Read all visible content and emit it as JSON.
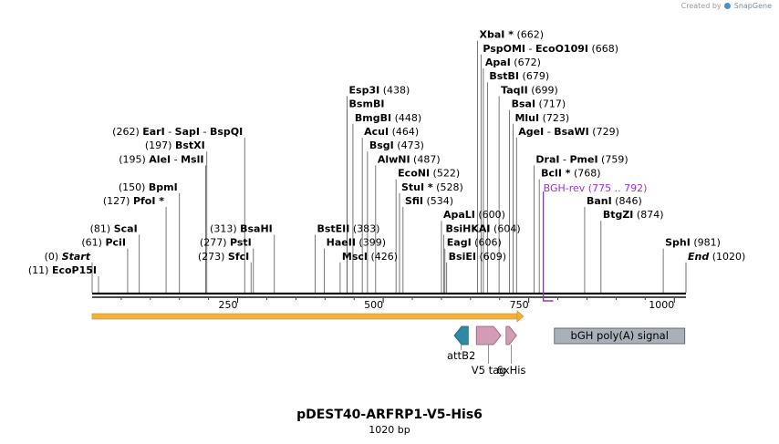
{
  "credit": {
    "prefix": "Created by",
    "brand": "SnapGene"
  },
  "title": "pDEST40-ARFRP1-V5-His6",
  "subtitle": "1020 bp",
  "sequence_length": 1020,
  "ruler_ticks": [
    {
      "pos": 250,
      "label": "250"
    },
    {
      "pos": 500,
      "label": "500"
    },
    {
      "pos": 750,
      "label": "750"
    },
    {
      "pos": 1000,
      "label": "1000"
    }
  ],
  "sites": [
    {
      "id": "ecop15i",
      "pos": 11,
      "pos_label": "(11)",
      "names": [
        "EcoP15I"
      ],
      "italic": false,
      "star": false,
      "row": 0,
      "side": "left"
    },
    {
      "id": "start",
      "pos": 0,
      "pos_label": "(0)",
      "names": [
        "Start"
      ],
      "italic": true,
      "star": false,
      "row": 1,
      "side": "left"
    },
    {
      "id": "pcii",
      "pos": 61,
      "pos_label": "(61)",
      "names": [
        "PciI"
      ],
      "row": 2,
      "side": "left"
    },
    {
      "id": "scai",
      "pos": 81,
      "pos_label": "(81)",
      "names": [
        "ScaI"
      ],
      "row": 3,
      "side": "left"
    },
    {
      "id": "pfoi",
      "pos": 127,
      "pos_label": "(127)",
      "names": [
        "PfoI *"
      ],
      "row": 5,
      "side": "left"
    },
    {
      "id": "bpmi",
      "pos": 150,
      "pos_label": "(150)",
      "names": [
        "BpmI"
      ],
      "row": 6,
      "side": "left"
    },
    {
      "id": "alei",
      "pos": 195,
      "pos_label": "(195)",
      "names": [
        "AleI",
        "MslI"
      ],
      "row": 8,
      "side": "left"
    },
    {
      "id": "bstxi",
      "pos": 197,
      "pos_label": "(197)",
      "names": [
        "BstXI"
      ],
      "row": 9,
      "side": "left"
    },
    {
      "id": "eari",
      "pos": 262,
      "pos_label": "(262)",
      "names": [
        "EarI",
        "SapI",
        "BspQI"
      ],
      "row": 10,
      "side": "left"
    },
    {
      "id": "sfci",
      "pos": 273,
      "pos_label": "(273)",
      "names": [
        "SfcI"
      ],
      "row": 1,
      "side": "left"
    },
    {
      "id": "psti",
      "pos": 277,
      "pos_label": "(277)",
      "names": [
        "PstI"
      ],
      "row": 2,
      "side": "left"
    },
    {
      "id": "bsahi",
      "pos": 313,
      "pos_label": "(313)",
      "names": [
        "BsaHI"
      ],
      "row": 3,
      "side": "left"
    },
    {
      "id": "msci",
      "pos": 426,
      "pos_label": "(426)",
      "names": [
        "MscI"
      ],
      "row": 1,
      "side": "right"
    },
    {
      "id": "haeii",
      "pos": 399,
      "pos_label": "(399)",
      "names": [
        "HaeII"
      ],
      "row": 2,
      "side": "right"
    },
    {
      "id": "bsteii",
      "pos": 383,
      "pos_label": "(383)",
      "names": [
        "BstEII"
      ],
      "row": 3,
      "side": "right"
    },
    {
      "id": "sfii",
      "pos": 534,
      "pos_label": "(534)",
      "names": [
        "SfiI"
      ],
      "row": 5,
      "side": "right"
    },
    {
      "id": "stui",
      "pos": 528,
      "pos_label": "(528)",
      "names": [
        "StuI *"
      ],
      "row": 6,
      "side": "right"
    },
    {
      "id": "econi",
      "pos": 522,
      "pos_label": "(522)",
      "names": [
        "EcoNI"
      ],
      "row": 7,
      "side": "right"
    },
    {
      "id": "alwni",
      "pos": 487,
      "pos_label": "(487)",
      "names": [
        "AlwNI"
      ],
      "row": 8,
      "side": "right"
    },
    {
      "id": "bsgi",
      "pos": 473,
      "pos_label": "(473)",
      "names": [
        "BsgI"
      ],
      "row": 9,
      "side": "right"
    },
    {
      "id": "acui",
      "pos": 464,
      "pos_label": "(464)",
      "names": [
        "AcuI"
      ],
      "row": 10,
      "side": "right"
    },
    {
      "id": "bmgbi",
      "pos": 448,
      "pos_label": "(448)",
      "names": [
        "BmgBI"
      ],
      "row": 11,
      "side": "right"
    },
    {
      "id": "bsmbi",
      "pos": 438,
      "pos_label": "",
      "names": [
        "BsmBI"
      ],
      "row": 12,
      "side": "right"
    },
    {
      "id": "esp3i",
      "pos": 438,
      "pos_label": "(438)",
      "names": [
        "Esp3I"
      ],
      "row": 13,
      "side": "right"
    },
    {
      "id": "bsiei",
      "pos": 609,
      "pos_label": "(609)",
      "names": [
        "BsiEI"
      ],
      "row": 1,
      "side": "right"
    },
    {
      "id": "eagi",
      "pos": 606,
      "pos_label": "(606)",
      "names": [
        "EagI"
      ],
      "row": 2,
      "side": "right"
    },
    {
      "id": "bsihkai",
      "pos": 604,
      "pos_label": "(604)",
      "names": [
        "BsiHKAI"
      ],
      "row": 3,
      "side": "right"
    },
    {
      "id": "apali",
      "pos": 600,
      "pos_label": "(600)",
      "names": [
        "ApaLI"
      ],
      "row": 4,
      "side": "right"
    },
    {
      "id": "bcli",
      "pos": 768,
      "pos_label": "(768)",
      "names": [
        "BclI *"
      ],
      "row": 7,
      "side": "right"
    },
    {
      "id": "drai",
      "pos": 759,
      "pos_label": "(759)",
      "names": [
        "DraI",
        "PmeI"
      ],
      "row": 8,
      "side": "right"
    },
    {
      "id": "agei",
      "pos": 729,
      "pos_label": "(729)",
      "names": [
        "AgeI",
        "BsaWI"
      ],
      "row": 10,
      "side": "right"
    },
    {
      "id": "mlui",
      "pos": 723,
      "pos_label": "(723)",
      "names": [
        "MluI"
      ],
      "row": 11,
      "side": "right"
    },
    {
      "id": "bsai",
      "pos": 717,
      "pos_label": "(717)",
      "names": [
        "BsaI"
      ],
      "row": 12,
      "side": "right"
    },
    {
      "id": "taqii",
      "pos": 699,
      "pos_label": "(699)",
      "names": [
        "TaqII"
      ],
      "row": 13,
      "side": "right"
    },
    {
      "id": "bstbi",
      "pos": 679,
      "pos_label": "(679)",
      "names": [
        "BstBI"
      ],
      "row": 14,
      "side": "right"
    },
    {
      "id": "apai",
      "pos": 672,
      "pos_label": "(672)",
      "names": [
        "ApaI"
      ],
      "row": 15,
      "side": "right"
    },
    {
      "id": "pspomi",
      "pos": 668,
      "pos_label": "(668)",
      "names": [
        "PspOMI",
        "EcoO109I"
      ],
      "row": 16,
      "side": "right"
    },
    {
      "id": "xbai",
      "pos": 662,
      "pos_label": "(662)",
      "names": [
        "XbaI *"
      ],
      "row": 17,
      "side": "right"
    },
    {
      "id": "end",
      "pos": 1020,
      "pos_label": "(1020)",
      "names": [
        "End"
      ],
      "italic": true,
      "row": 1,
      "side": "right"
    },
    {
      "id": "sphi",
      "pos": 981,
      "pos_label": "(981)",
      "names": [
        "SphI"
      ],
      "row": 2,
      "side": "right"
    },
    {
      "id": "btgzi",
      "pos": 874,
      "pos_label": "(874)",
      "names": [
        "BtgZI"
      ],
      "row": 4,
      "side": "right"
    },
    {
      "id": "bani",
      "pos": 846,
      "pos_label": "(846)",
      "names": [
        "BanI"
      ],
      "row": 5,
      "side": "right"
    }
  ],
  "primer": {
    "name": "BGH-rev",
    "range_label": "(775 .. 792)",
    "start": 775,
    "end": 792,
    "color": "#9b30d9"
  },
  "features": [
    {
      "id": "orf",
      "name": "",
      "type": "orf",
      "start": 0,
      "end": 741,
      "color": "#f2b13c"
    },
    {
      "id": "attb2",
      "name": "attB2",
      "type": "arrow-left",
      "start": 622,
      "end": 646,
      "color": "#2e8aa3"
    },
    {
      "id": "v5tag",
      "name": "V5 tag",
      "type": "arrow-right",
      "start": 660,
      "end": 702,
      "color": "#d39cb4"
    },
    {
      "id": "6xhis",
      "name": "6xHis",
      "type": "arrow-right",
      "start": 711,
      "end": 729,
      "color": "#d39cb4"
    },
    {
      "id": "bgh",
      "name": "bGH poly(A) signal",
      "type": "box",
      "start": 794,
      "end": 1018,
      "color": "#a9b0b8"
    }
  ],
  "colors": {
    "backbone": "#111111",
    "leader": "#555555",
    "text": "#000000",
    "pos_text": "#000000"
  }
}
